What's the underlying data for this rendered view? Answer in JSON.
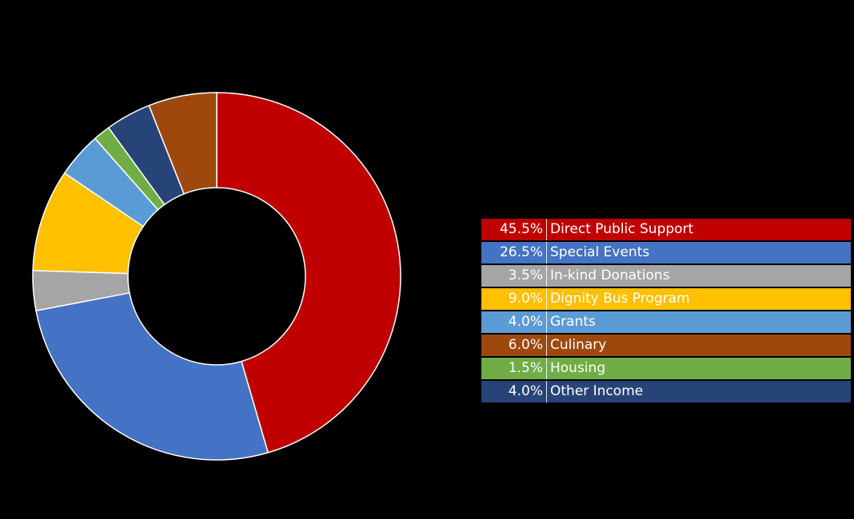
{
  "chart_data": {
    "type": "pie",
    "donut": true,
    "slices": [
      {
        "label": "Direct Public Support",
        "value": 45.5,
        "pct": "45.5%",
        "color": "#C00000"
      },
      {
        "label": "Special Events",
        "value": 26.5,
        "pct": "26.5%",
        "color": "#4472C4"
      },
      {
        "label": "In-kind Donations",
        "value": 3.5,
        "pct": "3.5%",
        "color": "#A5A5A5"
      },
      {
        "label": "Dignity Bus Program",
        "value": 9.0,
        "pct": "9.0%",
        "color": "#FFC000"
      },
      {
        "label": "Grants",
        "value": 4.0,
        "pct": "4.0%",
        "color": "#5B9BD5"
      },
      {
        "label": "Culinary",
        "value": 6.0,
        "pct": "6.0%",
        "color": "#9E480E"
      },
      {
        "label": "Housing",
        "value": 1.5,
        "pct": "1.5%",
        "color": "#70AD47"
      },
      {
        "label": "Other Income",
        "value": 4.0,
        "pct": "4.0%",
        "color": "#264478"
      }
    ],
    "legend_position": "right"
  }
}
